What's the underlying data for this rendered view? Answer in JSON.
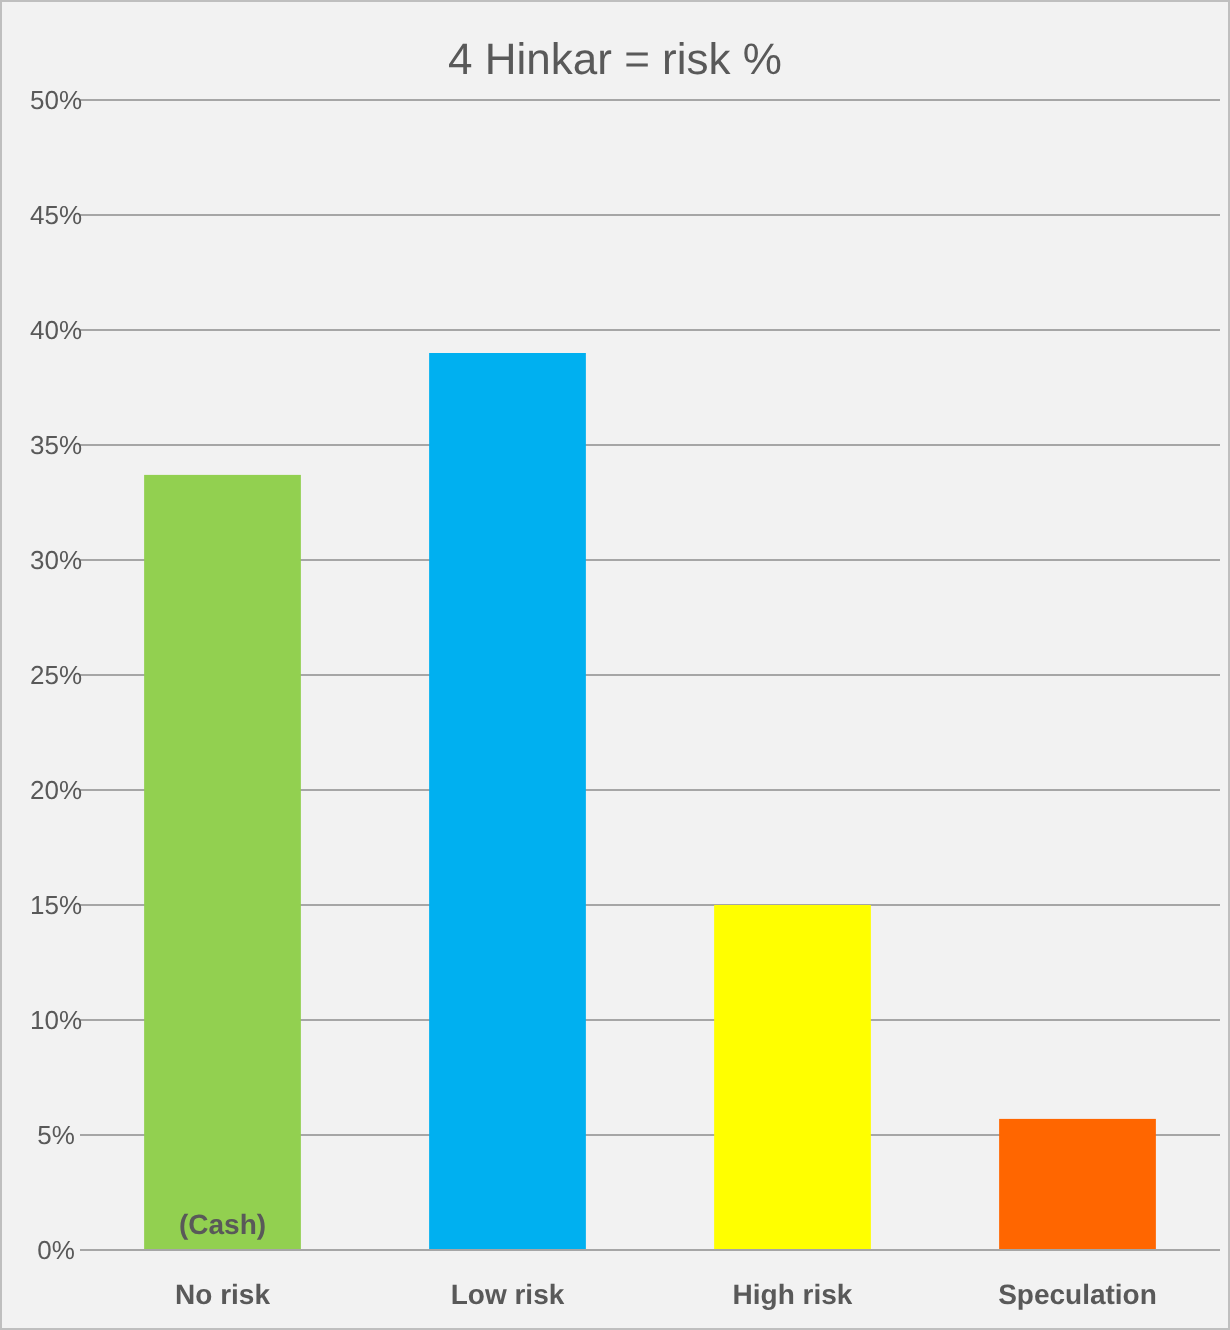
{
  "chart_data": {
    "type": "bar",
    "title": "4 Hinkar = risk %",
    "categories": [
      "No risk",
      "Low risk",
      "High risk",
      "Speculation"
    ],
    "values": [
      33.7,
      39.0,
      15.0,
      5.7
    ],
    "colors": [
      "#92d050",
      "#00b0f0",
      "#ffff00",
      "#ff6600"
    ],
    "ylim": [
      0,
      50
    ],
    "yticks": [
      {
        "value": 0,
        "label": "0%"
      },
      {
        "value": 5,
        "label": "5%"
      },
      {
        "value": 10,
        "label": "10%"
      },
      {
        "value": 15,
        "label": "15%"
      },
      {
        "value": 20,
        "label": "20%"
      },
      {
        "value": 25,
        "label": "25%"
      },
      {
        "value": 30,
        "label": "30%"
      },
      {
        "value": 35,
        "label": "35%"
      },
      {
        "value": 40,
        "label": "40%"
      },
      {
        "value": 45,
        "label": "45%"
      },
      {
        "value": 50,
        "label": "50%"
      }
    ],
    "grid": "y",
    "annotations": [
      {
        "text": "(Cash)",
        "x": "No risk",
        "y": 0
      }
    ]
  }
}
